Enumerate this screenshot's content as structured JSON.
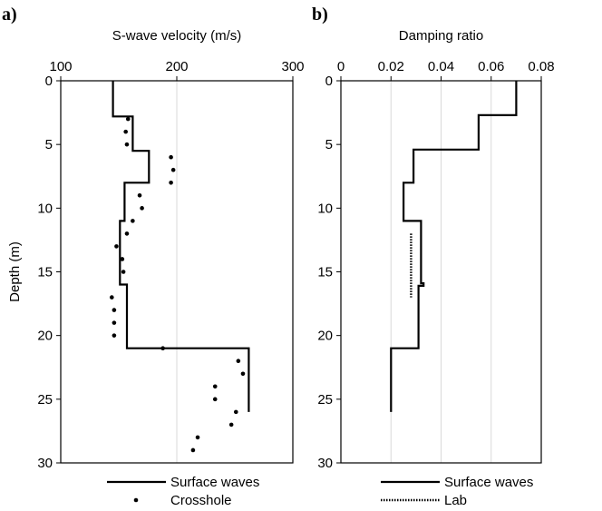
{
  "chart_data": [
    {
      "type": "line",
      "panel_label": "a)",
      "xlabel": "S-wave velocity (m/s)",
      "ylabel": "Depth (m)",
      "xlim": [
        100,
        300
      ],
      "ylim": [
        0,
        30
      ],
      "x_axis_position": "top",
      "y_inverted": true,
      "xticks": [
        100,
        200,
        300
      ],
      "yticks": [
        0,
        5,
        10,
        15,
        20,
        25,
        30
      ],
      "grid": "vertical",
      "legend_placement": "below",
      "series": [
        {
          "name": "Surface waves",
          "style": "solid step",
          "points": [
            [
              145,
              0
            ],
            [
              145,
              2.8
            ],
            [
              162,
              2.8
            ],
            [
              162,
              5.5
            ],
            [
              176,
              5.5
            ],
            [
              176,
              8
            ],
            [
              155,
              8
            ],
            [
              155,
              11
            ],
            [
              151,
              11
            ],
            [
              151,
              16
            ],
            [
              157,
              16
            ],
            [
              157,
              21
            ],
            [
              262,
              21
            ],
            [
              262,
              26
            ]
          ]
        },
        {
          "name": "Crosshole",
          "style": "dots",
          "points": [
            [
              158,
              3
            ],
            [
              156,
              4
            ],
            [
              157,
              5
            ],
            [
              195,
              6
            ],
            [
              197,
              7
            ],
            [
              195,
              8
            ],
            [
              168,
              9
            ],
            [
              170,
              10
            ],
            [
              162,
              11
            ],
            [
              157,
              12
            ],
            [
              148,
              13
            ],
            [
              153,
              14
            ],
            [
              154,
              15
            ],
            [
              144,
              17
            ],
            [
              146,
              18
            ],
            [
              146,
              19
            ],
            [
              146,
              20
            ],
            [
              188,
              21
            ],
            [
              253,
              22
            ],
            [
              257,
              23
            ],
            [
              233,
              24
            ],
            [
              233,
              25
            ],
            [
              251,
              26
            ],
            [
              247,
              27
            ],
            [
              218,
              28
            ],
            [
              214,
              29
            ]
          ]
        }
      ]
    },
    {
      "type": "line",
      "panel_label": "b)",
      "xlabel": "Damping ratio",
      "ylabel": "",
      "xlim": [
        0,
        0.08
      ],
      "ylim": [
        0,
        30
      ],
      "x_axis_position": "top",
      "y_inverted": true,
      "xticks": [
        "0",
        "0.02",
        "0.04",
        "0.06",
        "0.08"
      ],
      "yticks": [
        0,
        5,
        10,
        15,
        20,
        25,
        30
      ],
      "grid": "vertical",
      "legend_placement": "below",
      "series": [
        {
          "name": "Surface waves",
          "style": "solid step",
          "points": [
            [
              0.07,
              0
            ],
            [
              0.07,
              2.7
            ],
            [
              0.055,
              2.7
            ],
            [
              0.055,
              5.4
            ],
            [
              0.029,
              5.4
            ],
            [
              0.029,
              8
            ],
            [
              0.025,
              8
            ],
            [
              0.025,
              11
            ],
            [
              0.032,
              11
            ],
            [
              0.032,
              15.9
            ],
            [
              0.033,
              15.9
            ],
            [
              0.033,
              16.1
            ],
            [
              0.031,
              16.1
            ],
            [
              0.031,
              21
            ],
            [
              0.02,
              21
            ],
            [
              0.02,
              26
            ]
          ]
        },
        {
          "name": "Lab",
          "style": "dotted",
          "points": [
            [
              0.028,
              12
            ],
            [
              0.028,
              17
            ]
          ]
        }
      ]
    }
  ]
}
